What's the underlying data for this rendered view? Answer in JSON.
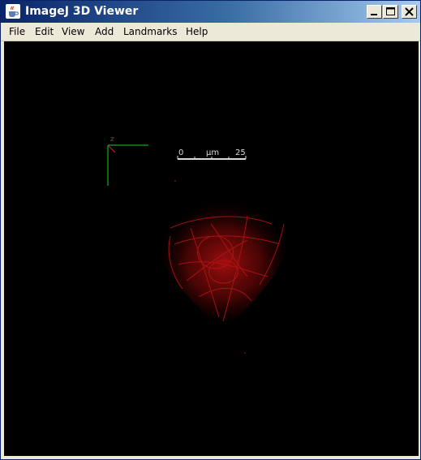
{
  "window": {
    "title": "ImageJ 3D Viewer",
    "icon": "java-coffee-cup-icon",
    "controls": [
      "minimize-icon",
      "maximize-icon",
      "close-icon"
    ]
  },
  "menu": {
    "items": [
      {
        "label": "File"
      },
      {
        "label": "Edit"
      },
      {
        "label": "View"
      },
      {
        "label": "Add"
      },
      {
        "label": "Landmarks"
      },
      {
        "label": "Help"
      }
    ]
  },
  "viewer": {
    "background": "#000000",
    "scalebar": {
      "start": "0",
      "unit": "µm",
      "end": "25",
      "color": "#d8d8d8"
    },
    "axes": {
      "x_color": "#22cc22",
      "y_color": "#22cc22",
      "z_color": "#d02020",
      "z_label": "z"
    },
    "volume": {
      "channel_color": "#cc1111"
    }
  }
}
